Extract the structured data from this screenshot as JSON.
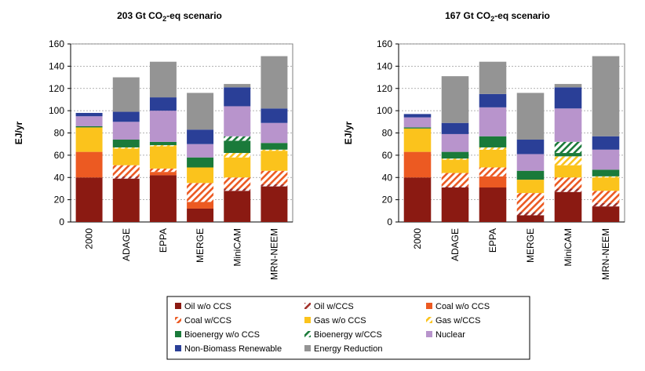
{
  "colors": {
    "oil_wo_ccs": "#8b1a12",
    "oil_w_ccs": "#a3312a",
    "coal_wo_ccs": "#ec5a22",
    "coal_w_ccs": "#ec5a22",
    "gas_wo_ccs": "#fbc31c",
    "gas_w_ccs": "#fbc31c",
    "bio_wo_ccs": "#1a7a3a",
    "bio_w_ccs": "#1a7a3a",
    "nuclear": "#b894cc",
    "renewable": "#2a3f97",
    "reduction": "#949494"
  },
  "legend": [
    {
      "key": "oil_wo_ccs",
      "label": "Oil w/o CCS",
      "hatch": false
    },
    {
      "key": "oil_w_ccs",
      "label": "Oil w/CCS",
      "hatch": true
    },
    {
      "key": "coal_wo_ccs",
      "label": "Coal w/o CCS",
      "hatch": false
    },
    {
      "key": "coal_w_ccs",
      "label": "Coal w/CCS",
      "hatch": true
    },
    {
      "key": "gas_wo_ccs",
      "label": "Gas w/o CCS",
      "hatch": false
    },
    {
      "key": "gas_w_ccs",
      "label": "Gas w/CCS",
      "hatch": true
    },
    {
      "key": "bio_wo_ccs",
      "label": "Bioenergy w/o CCS",
      "hatch": false
    },
    {
      "key": "bio_w_ccs",
      "label": "Bioenergy w/CCS",
      "hatch": true
    },
    {
      "key": "nuclear",
      "label": "Nuclear",
      "hatch": false
    },
    {
      "key": "renewable",
      "label": "Non-Biomass Renewable",
      "hatch": false
    },
    {
      "key": "reduction",
      "label": "Energy Reduction",
      "hatch": false
    }
  ],
  "chart_data": [
    {
      "type": "bar",
      "stacked": true,
      "title_main": "203 Gt CO",
      "title_sub": "2",
      "title_tail": "-eq scenario",
      "ylabel": "EJ/yr",
      "ylim": [
        0,
        160
      ],
      "yticks": [
        "0",
        "20",
        "40",
        "60",
        "80",
        "100",
        "120",
        "140",
        "160"
      ],
      "grid": true,
      "categories": [
        "2000",
        "ADAGE",
        "EPPA",
        "MERGE",
        "MiniCAM",
        "MRN-NEEM"
      ],
      "series": [
        {
          "key": "oil_wo_ccs",
          "name": "Oil w/o CCS",
          "values": [
            40,
            39,
            42,
            12,
            28,
            32
          ]
        },
        {
          "key": "oil_w_ccs",
          "name": "Oil w/CCS",
          "values": [
            0,
            2,
            0,
            0,
            2,
            2
          ]
        },
        {
          "key": "coal_wo_ccs",
          "name": "Coal w/o CCS",
          "values": [
            23,
            0,
            3,
            6,
            0,
            0
          ]
        },
        {
          "key": "coal_w_ccs",
          "name": "Coal w/CCS",
          "values": [
            0,
            10,
            3,
            17,
            10,
            12
          ]
        },
        {
          "key": "gas_wo_ccs",
          "name": "Gas w/o CCS",
          "values": [
            22,
            15,
            20,
            14,
            18,
            18
          ]
        },
        {
          "key": "gas_w_ccs",
          "name": "Gas w/CCS",
          "values": [
            0,
            1,
            1,
            0,
            4,
            1
          ]
        },
        {
          "key": "bio_wo_ccs",
          "name": "Bioenergy w/o CCS",
          "values": [
            1,
            7,
            3,
            9,
            11,
            6
          ]
        },
        {
          "key": "bio_w_ccs",
          "name": "Bioenergy w/CCS",
          "values": [
            0,
            0,
            0,
            0,
            4,
            0
          ]
        },
        {
          "key": "nuclear",
          "name": "Nuclear",
          "values": [
            9,
            16,
            28,
            12,
            27,
            18
          ]
        },
        {
          "key": "renewable",
          "name": "Non-Biomass Renewable",
          "values": [
            3,
            9,
            12,
            13,
            17,
            13
          ]
        },
        {
          "key": "reduction",
          "name": "Energy Reduction",
          "values": [
            0,
            31,
            32,
            33,
            3,
            47
          ]
        }
      ]
    },
    {
      "type": "bar",
      "stacked": true,
      "title_main": "167 Gt CO",
      "title_sub": "2",
      "title_tail": "-eq scenario",
      "ylabel": "EJ/yr",
      "ylim": [
        0,
        160
      ],
      "yticks": [
        "0",
        "20",
        "40",
        "60",
        "80",
        "100",
        "120",
        "140",
        "160"
      ],
      "grid": true,
      "categories": [
        "2000",
        "ADAGE",
        "EPPA",
        "MERGE",
        "MiniCAM",
        "MRN-NEEM"
      ],
      "series": [
        {
          "key": "oil_wo_ccs",
          "name": "Oil w/o CCS",
          "values": [
            40,
            31,
            31,
            6,
            27,
            14
          ]
        },
        {
          "key": "oil_w_ccs",
          "name": "Oil w/CCS",
          "values": [
            0,
            1,
            0,
            3,
            3,
            3
          ]
        },
        {
          "key": "coal_wo_ccs",
          "name": "Coal w/o CCS",
          "values": [
            23,
            0,
            10,
            0,
            0,
            0
          ]
        },
        {
          "key": "coal_w_ccs",
          "name": "Coal w/CCS",
          "values": [
            0,
            12,
            8,
            17,
            10,
            11
          ]
        },
        {
          "key": "gas_wo_ccs",
          "name": "Gas w/o CCS",
          "values": [
            21,
            12,
            16,
            12,
            11,
            12
          ]
        },
        {
          "key": "gas_w_ccs",
          "name": "Gas w/CCS",
          "values": [
            0,
            1,
            2,
            0,
            8,
            1
          ]
        },
        {
          "key": "bio_wo_ccs",
          "name": "Bioenergy w/o CCS",
          "values": [
            1,
            6,
            10,
            8,
            3,
            6
          ]
        },
        {
          "key": "bio_w_ccs",
          "name": "Bioenergy w/CCS",
          "values": [
            0,
            0,
            0,
            0,
            10,
            0
          ]
        },
        {
          "key": "nuclear",
          "name": "Nuclear",
          "values": [
            9,
            16,
            26,
            15,
            30,
            18
          ]
        },
        {
          "key": "renewable",
          "name": "Non-Biomass Renewable",
          "values": [
            3,
            10,
            12,
            13,
            19,
            12
          ]
        },
        {
          "key": "reduction",
          "name": "Energy Reduction",
          "values": [
            0,
            42,
            29,
            42,
            3,
            72
          ]
        }
      ]
    }
  ]
}
